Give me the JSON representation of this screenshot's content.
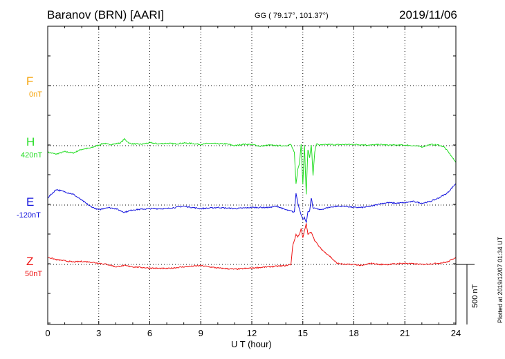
{
  "header": {
    "station": "Baranov (BRN)  [AARI]",
    "coords": "GG ( 79.17°, 101.37°)",
    "date": "2019/11/06"
  },
  "plotted": "Plotted at 2019/12/07 01:34 UT",
  "scale": {
    "label": "500 nT",
    "value_nT": 500
  },
  "chart_data": {
    "type": "line",
    "xlabel": "U T (hour)",
    "xlim": [
      0,
      24
    ],
    "xticks": [
      "0",
      "3",
      "6",
      "9",
      "12",
      "15",
      "18",
      "21",
      "24"
    ],
    "grid": true,
    "channel_spacing_nT": 500,
    "series": [
      {
        "name": "F",
        "baseline_label": "0nT",
        "color": "#f5a000",
        "has_data": false,
        "x": [],
        "y": []
      },
      {
        "name": "H",
        "baseline_label": "420nT",
        "color": "#22dd22",
        "has_data": true,
        "x": [
          0,
          0.5,
          1.0,
          1.5,
          2.0,
          2.5,
          3.0,
          3.3,
          3.6,
          4.0,
          4.3,
          4.5,
          4.8,
          5.0,
          5.5,
          6.0,
          6.5,
          7.0,
          7.5,
          8.0,
          8.5,
          9.0,
          9.5,
          10.0,
          10.5,
          11.0,
          11.5,
          12.0,
          12.5,
          13.0,
          13.5,
          14.0,
          14.3,
          14.5,
          14.6,
          14.7,
          14.8,
          14.9,
          15.0,
          15.1,
          15.2,
          15.3,
          15.4,
          15.5,
          15.6,
          15.7,
          15.8,
          16.0,
          16.5,
          17.0,
          17.5,
          18.0,
          18.5,
          19.0,
          19.5,
          20.0,
          20.5,
          21.0,
          21.5,
          22.0,
          22.5,
          23.0,
          23.3,
          23.6,
          24.0
        ],
        "y": [
          -55,
          -70,
          -50,
          -60,
          -30,
          -20,
          5,
          20,
          10,
          15,
          25,
          55,
          20,
          15,
          12,
          25,
          15,
          20,
          15,
          22,
          18,
          10,
          20,
          15,
          15,
          0,
          12,
          10,
          -5,
          5,
          0,
          0,
          10,
          -60,
          -320,
          -200,
          -150,
          15,
          -320,
          5,
          -400,
          -30,
          -100,
          10,
          -250,
          -50,
          15,
          5,
          10,
          8,
          10,
          10,
          8,
          5,
          10,
          5,
          5,
          5,
          0,
          -10,
          10,
          5,
          -10,
          -60,
          -140
        ]
      },
      {
        "name": "E",
        "baseline_label": "-120nT",
        "color": "#1010dd",
        "has_data": true,
        "x": [
          0,
          0.5,
          1.0,
          1.5,
          2.0,
          2.5,
          3.0,
          3.5,
          4.0,
          4.5,
          5.0,
          6.0,
          7.0,
          8.0,
          9.0,
          10.0,
          11.0,
          12.0,
          13.0,
          13.5,
          14.0,
          14.3,
          14.5,
          14.6,
          14.7,
          14.8,
          14.9,
          15.0,
          15.1,
          15.2,
          15.3,
          15.4,
          15.5,
          15.6,
          15.7,
          15.8,
          16.0,
          16.5,
          17.0,
          17.5,
          18.0,
          18.5,
          19.0,
          19.5,
          20.0,
          20.5,
          21.0,
          21.5,
          22.0,
          22.5,
          23.0,
          23.5,
          24.0
        ],
        "y": [
          60,
          130,
          110,
          90,
          40,
          -10,
          -40,
          -20,
          -30,
          -60,
          -40,
          -30,
          -30,
          -10,
          -30,
          -20,
          -30,
          -20,
          -20,
          -10,
          -40,
          -50,
          -60,
          100,
          20,
          -30,
          -80,
          -120,
          -100,
          -150,
          -60,
          -50,
          60,
          -30,
          -20,
          -30,
          -40,
          -20,
          -10,
          -10,
          -20,
          -20,
          -10,
          10,
          20,
          15,
          20,
          30,
          15,
          30,
          60,
          100,
          180
        ]
      },
      {
        "name": "Z",
        "baseline_label": "50nT",
        "color": "#ee1111",
        "has_data": true,
        "x": [
          0,
          0.5,
          1.0,
          1.5,
          2.0,
          2.5,
          3.0,
          3.5,
          4.0,
          4.5,
          5.0,
          6.0,
          7.0,
          8.0,
          9.0,
          10.0,
          11.0,
          12.0,
          13.0,
          14.0,
          14.3,
          14.4,
          14.5,
          14.6,
          14.7,
          14.8,
          14.9,
          15.0,
          15.1,
          15.2,
          15.3,
          15.5,
          15.7,
          16.0,
          16.3,
          16.5,
          17.0,
          17.5,
          18.0,
          18.5,
          19.0,
          19.5,
          20.0,
          21.0,
          22.0,
          23.0,
          23.5,
          24.0
        ],
        "y": [
          60,
          40,
          30,
          20,
          25,
          20,
          10,
          0,
          -20,
          -10,
          -20,
          -30,
          -35,
          -20,
          -10,
          -30,
          -40,
          -30,
          -20,
          -10,
          0,
          150,
          200,
          250,
          230,
          250,
          300,
          220,
          280,
          340,
          250,
          270,
          200,
          140,
          100,
          80,
          10,
          0,
          0,
          -10,
          10,
          0,
          0,
          10,
          0,
          10,
          20,
          60
        ]
      }
    ]
  }
}
